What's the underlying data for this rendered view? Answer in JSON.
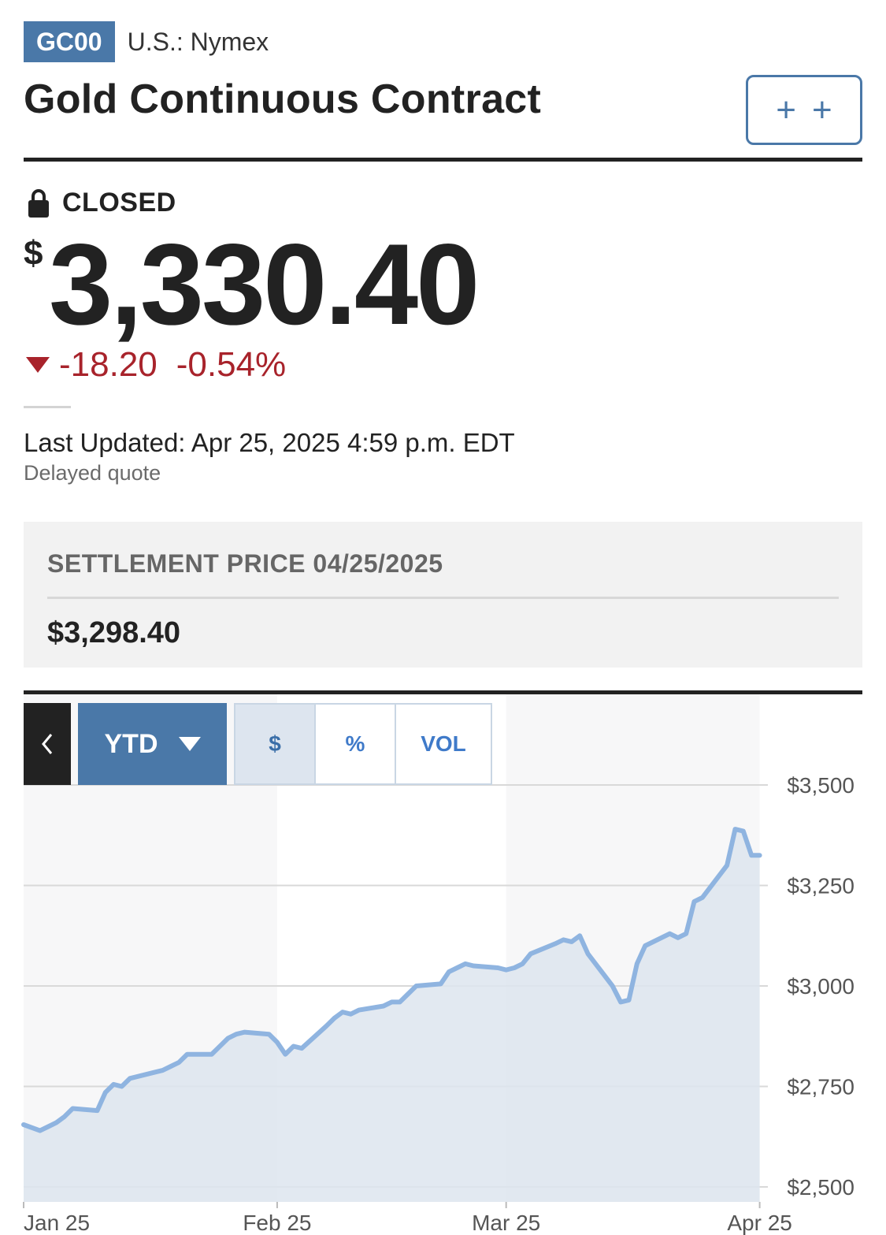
{
  "header": {
    "ticker": "GC00",
    "exchange": "U.S.: Nymex",
    "title": "Gold Continuous Contract",
    "watchlist_button_glyph": "+ +"
  },
  "quote": {
    "status": "CLOSED",
    "currency_symbol": "$",
    "price": "3,330.40",
    "change": "-18.20",
    "change_percent": "-0.54%",
    "direction": "down",
    "last_updated": "Last Updated: Apr 25, 2025 4:59 p.m. EDT",
    "delay_note": "Delayed quote"
  },
  "settlement": {
    "label": "SETTLEMENT PRICE 04/25/2025",
    "value": "$3,298.40"
  },
  "chart_toolbar": {
    "back_icon": "chevron-left-icon",
    "range": "YTD",
    "modes": [
      "$",
      "%",
      "VOL"
    ],
    "active_mode": "$"
  },
  "colors": {
    "accent": "#4a78a8",
    "negative": "#a8232b",
    "line": "#8fb4e0",
    "area": "#dde5ef"
  },
  "chart_data": {
    "type": "area",
    "y_ticks": [
      "$3,500",
      "$3,250",
      "$3,000",
      "$2,750",
      "$2,500"
    ],
    "y_tick_values": [
      3500,
      3250,
      3000,
      2750,
      2500
    ],
    "x_ticks": [
      "Jan 25",
      "Feb 25",
      "Mar 25",
      "Apr 25"
    ],
    "x_tick_dates": [
      "2025-01-25",
      "2025-02-25",
      "2025-03-25",
      "2025-04-25"
    ],
    "ylim": [
      2500,
      3500
    ],
    "xlim": [
      "2025-01-25",
      "2025-04-26"
    ],
    "grid": true,
    "series": [
      {
        "x": [
          "2025-01-25",
          "2025-01-27",
          "2025-01-28",
          "2025-01-29",
          "2025-01-30",
          "2025-01-31",
          "2025-02-03",
          "2025-02-04",
          "2025-02-05",
          "2025-02-06",
          "2025-02-07",
          "2025-02-10",
          "2025-02-11",
          "2025-02-12",
          "2025-02-13",
          "2025-02-14",
          "2025-02-17",
          "2025-02-18",
          "2025-02-19",
          "2025-02-20",
          "2025-02-21",
          "2025-02-24",
          "2025-02-25",
          "2025-02-26",
          "2025-02-27",
          "2025-02-28",
          "2025-03-03",
          "2025-03-04",
          "2025-03-05",
          "2025-03-06",
          "2025-03-07",
          "2025-03-10",
          "2025-03-11",
          "2025-03-12",
          "2025-03-13",
          "2025-03-14",
          "2025-03-17",
          "2025-03-18",
          "2025-03-19",
          "2025-03-20",
          "2025-03-21",
          "2025-03-24",
          "2025-03-25",
          "2025-03-26",
          "2025-03-27",
          "2025-03-28",
          "2025-03-31",
          "2025-04-01",
          "2025-04-02",
          "2025-04-03",
          "2025-04-04",
          "2025-04-07",
          "2025-04-08",
          "2025-04-09",
          "2025-04-10",
          "2025-04-11",
          "2025-04-14",
          "2025-04-15",
          "2025-04-16",
          "2025-04-17",
          "2025-04-18",
          "2025-04-21",
          "2025-04-22",
          "2025-04-23",
          "2025-04-24",
          "2025-04-25"
        ],
        "y": [
          2655,
          2640,
          2650,
          2660,
          2675,
          2695,
          2690,
          2735,
          2755,
          2750,
          2770,
          2785,
          2790,
          2800,
          2810,
          2830,
          2830,
          2850,
          2870,
          2880,
          2885,
          2880,
          2860,
          2830,
          2850,
          2845,
          2900,
          2920,
          2935,
          2930,
          2940,
          2950,
          2960,
          2960,
          2980,
          3000,
          3005,
          3035,
          3045,
          3055,
          3050,
          3045,
          3040,
          3045,
          3055,
          3080,
          3105,
          3115,
          3110,
          3125,
          3080,
          3000,
          2960,
          2965,
          3055,
          3100,
          3130,
          3120,
          3130,
          3210,
          3220,
          3300,
          3390,
          3385,
          3325,
          3325
        ]
      }
    ]
  }
}
